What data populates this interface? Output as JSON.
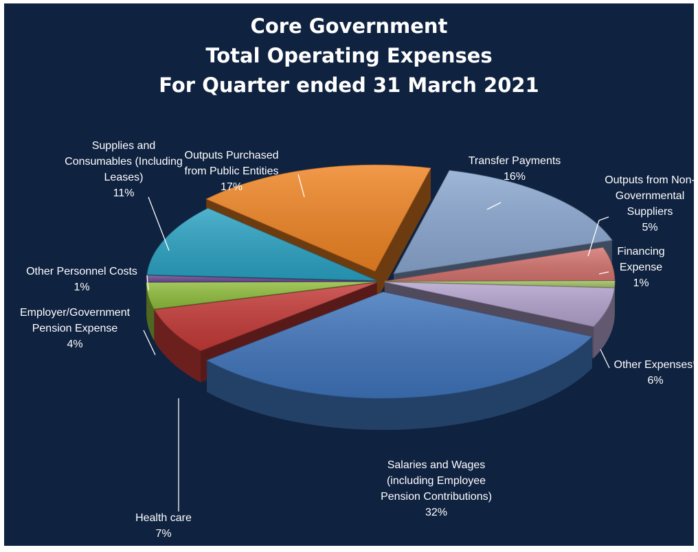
{
  "chart_data": {
    "type": "pie",
    "title": [
      "Core Government",
      "Total Operating Expenses",
      "For Quarter ended  31 March 2021"
    ],
    "slices": [
      {
        "label": [
          "Transfer Payments"
        ],
        "pct_label": "16%",
        "value": 16,
        "color": "#8aa7d0",
        "exploded": true
      },
      {
        "label": [
          "Outputs from Non-",
          "Governmental",
          "Suppliers"
        ],
        "pct_label": "5%",
        "value": 5,
        "color": "#d4736f",
        "exploded": false
      },
      {
        "label": [
          "Financing",
          "Expense"
        ],
        "pct_label": "1%",
        "value": 1,
        "color": "#a3c266",
        "exploded": false
      },
      {
        "label": [
          "Other Expenses*"
        ],
        "pct_label": "6%",
        "value": 6,
        "color": "#b3a2cd",
        "exploded": false
      },
      {
        "label": [
          "Salaries and Wages",
          "(including Employee",
          "Pension Contributions)"
        ],
        "pct_label": "32%",
        "value": 32,
        "color": "#3f74bb",
        "exploded": true
      },
      {
        "label": [
          "Health care"
        ],
        "pct_label": "7%",
        "value": 7,
        "color": "#c43a37",
        "exploded": false
      },
      {
        "label": [
          "Employer/Government",
          "Pension Expense"
        ],
        "pct_label": "4%",
        "value": 4,
        "color": "#8fbd3c",
        "exploded": false
      },
      {
        "label": [
          "Other Personnel Costs"
        ],
        "pct_label": "1%",
        "value": 1,
        "color": "#6a4c93",
        "exploded": false
      },
      {
        "label": [
          "Supplies and",
          "Consumables (Including",
          "Leases)"
        ],
        "pct_label": "11%",
        "value": 11,
        "color": "#2aa2c3",
        "exploded": false
      },
      {
        "label": [
          "Outputs Purchased",
          "from Public Entities"
        ],
        "pct_label": "17%",
        "value": 17,
        "color": "#ef8423",
        "exploded": true
      }
    ],
    "legend": "none"
  }
}
